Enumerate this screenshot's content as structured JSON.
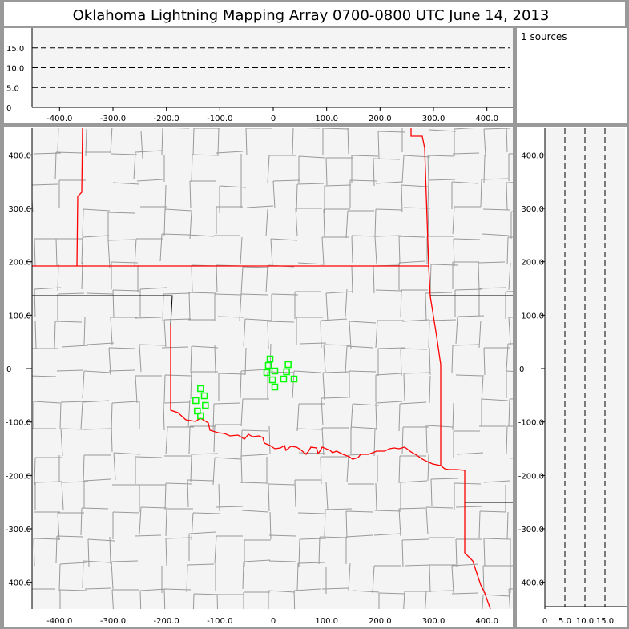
{
  "title": "Oklahoma Lightning Mapping Array   0700-0800 UTC  June 14, 2013",
  "source_count_label": "1 sources",
  "colors": {
    "frame": "#999999",
    "plot_bg": "#f4f4f4",
    "state_border": "#ff0000",
    "county_line": "#999999",
    "station": "#00ff00",
    "boundary_black": "#000000"
  },
  "chart_data": [
    {
      "type": "scatter",
      "panel": "altitude-vs-east-west",
      "xlim": [
        -450,
        450
      ],
      "ylim": [
        0,
        20
      ],
      "xticks": [
        "-400.0",
        "-300.0",
        "-200.0",
        "-100.0",
        "0",
        "100.0",
        "200.0",
        "300.0",
        "400.0"
      ],
      "xtick_values": [
        -400,
        -300,
        -200,
        -100,
        0,
        100,
        200,
        300,
        400
      ],
      "yticks": [
        "0",
        "5.0",
        "10.0",
        "15.0"
      ],
      "ytick_values": [
        0,
        5,
        10,
        15
      ],
      "dashed_gridlines": [
        5,
        10,
        15
      ]
    },
    {
      "type": "scatter",
      "panel": "plan-view-map",
      "xlim": [
        -450,
        450
      ],
      "ylim": [
        -450,
        450
      ],
      "xticks": [
        "-400.0",
        "-300.0",
        "-200.0",
        "-100.0",
        "0",
        "100.0",
        "200.0",
        "300.0",
        "400.0"
      ],
      "xtick_values": [
        -400,
        -300,
        -200,
        -100,
        0,
        100,
        200,
        300,
        400
      ],
      "yticks": [
        "400.0",
        "300.0",
        "200.0",
        "100.0",
        "0",
        "-100.0",
        "-200.0",
        "-300.0",
        "-400.0"
      ],
      "ytick_values": [
        400,
        300,
        200,
        100,
        0,
        -100,
        -200,
        -300,
        -400
      ],
      "stations": [
        [
          -6,
          18
        ],
        [
          -9,
          6
        ],
        [
          28,
          7.5
        ],
        [
          -12,
          -7.5
        ],
        [
          3,
          -4.5
        ],
        [
          25,
          -6
        ],
        [
          -1.5,
          -21
        ],
        [
          19.5,
          -19.5
        ],
        [
          39,
          -19.5
        ],
        [
          3,
          -34.5
        ],
        [
          -136,
          -37.5
        ],
        [
          -129,
          -51
        ],
        [
          -145,
          -60
        ],
        [
          -127,
          -69
        ],
        [
          -142,
          -79.5
        ],
        [
          -136,
          -88.5
        ]
      ]
    },
    {
      "type": "scatter",
      "panel": "north-south-vs-altitude",
      "xlim": [
        0,
        20
      ],
      "ylim": [
        -450,
        450
      ],
      "xticks": [
        "0",
        "5.0",
        "10.0",
        "15.0"
      ],
      "xtick_values": [
        0,
        5,
        10,
        15
      ],
      "yticks": [
        "400.0",
        "300.0",
        "200.0",
        "100.0",
        "0",
        "-100.0",
        "-200.0",
        "-300.0",
        "-400.0"
      ],
      "ytick_values": [
        400,
        300,
        200,
        100,
        0,
        -100,
        -200,
        -300,
        -400
      ],
      "dashed_gridlines": [
        5,
        10,
        15
      ]
    }
  ]
}
